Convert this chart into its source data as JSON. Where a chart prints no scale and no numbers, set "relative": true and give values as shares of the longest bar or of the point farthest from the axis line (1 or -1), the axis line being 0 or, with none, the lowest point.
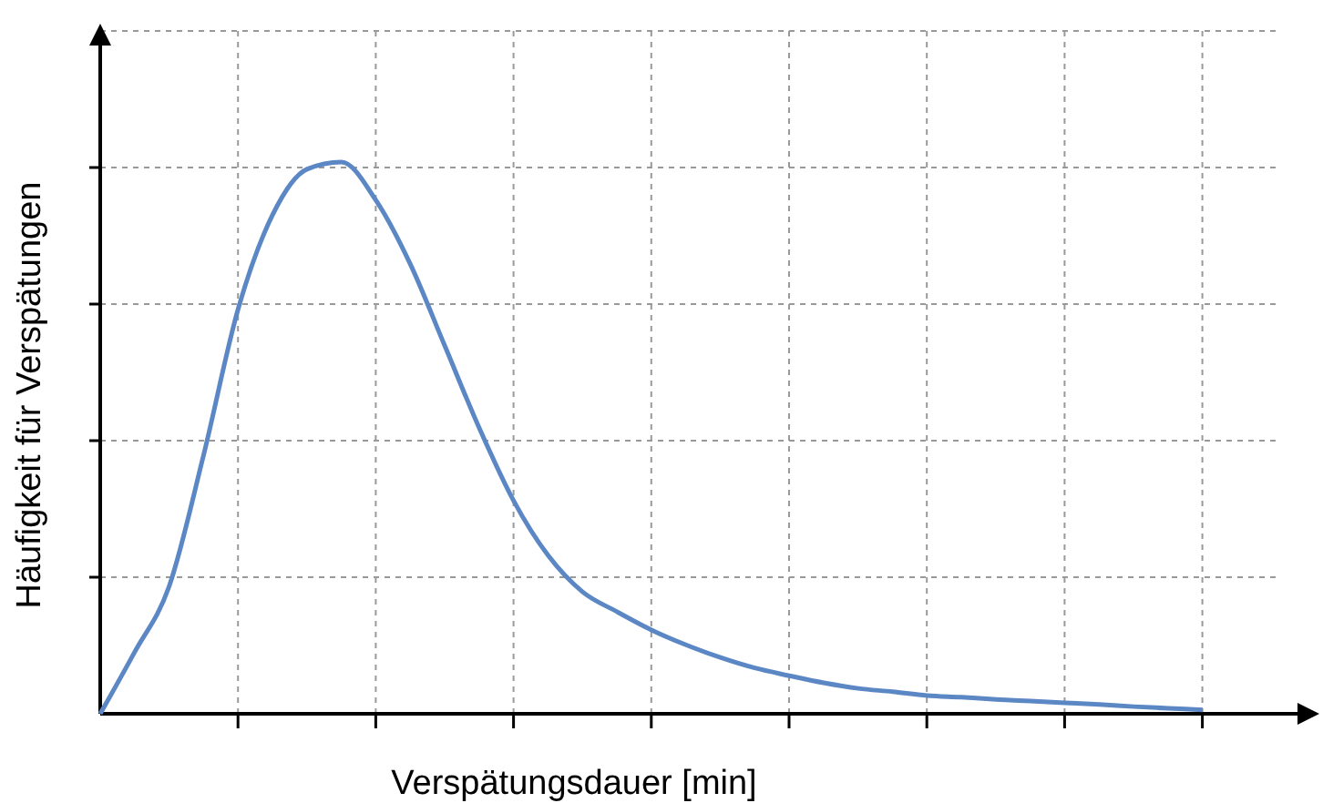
{
  "chart_data": {
    "type": "line",
    "xlabel": "Verspätungsdauer [min]",
    "ylabel": "Häufigkeit für Verspätungen",
    "relative": true,
    "grid": true,
    "marker": "none",
    "line_style": "solid",
    "categories": [
      null,
      null,
      null,
      null,
      null,
      null,
      null,
      null,
      null,
      null,
      null,
      null,
      null,
      null,
      null,
      null,
      null,
      null,
      null,
      null,
      null,
      null,
      null,
      null,
      null,
      null,
      null,
      null,
      null,
      null,
      null,
      null,
      null
    ],
    "series": [
      {
        "color": "#5b87c5",
        "values": [
          0,
          0.112,
          0.231,
          0.469,
          0.733,
          0.904,
          0.987,
          1,
          0.931,
          0.815,
          0.667,
          0.518,
          0.386,
          0.287,
          0.221,
          0.185,
          0.152,
          0.125,
          0.102,
          0.083,
          0.069,
          0.056,
          0.046,
          0.04,
          0.033,
          0.03,
          0.026,
          0.023,
          0.02,
          0.017,
          0.013,
          0.01,
          0.007
        ]
      }
    ]
  }
}
